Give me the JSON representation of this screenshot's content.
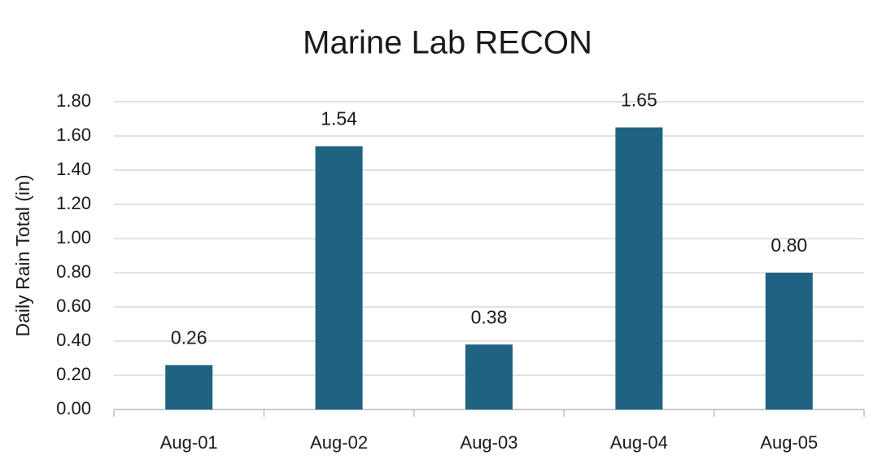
{
  "chart_data": {
    "type": "bar",
    "title": "Marine Lab RECON",
    "y_label": "Daily Rain Total (in)",
    "categories": [
      "Aug-01",
      "Aug-02",
      "Aug-03",
      "Aug-04",
      "Aug-05"
    ],
    "values": [
      0.26,
      1.54,
      0.38,
      1.65,
      0.8
    ],
    "value_labels": [
      "0.26",
      "1.54",
      "0.38",
      "1.65",
      "0.80"
    ],
    "color": "#1f6281",
    "ylim": [
      0,
      1.8
    ],
    "yticks": [
      {
        "value": 0,
        "label": "0.00"
      },
      {
        "value": 0.2,
        "label": "0.20"
      },
      {
        "value": 0.4,
        "label": "0.40"
      },
      {
        "value": 0.6,
        "label": "0.60"
      },
      {
        "value": 0.8,
        "label": "0.80"
      },
      {
        "value": 1.0,
        "label": "1.00"
      },
      {
        "value": 1.2,
        "label": "1.20"
      },
      {
        "value": 1.4,
        "label": "1.40"
      },
      {
        "value": 1.6,
        "label": "1.60"
      },
      {
        "value": 1.8,
        "label": "1.80"
      }
    ],
    "grid": true
  }
}
